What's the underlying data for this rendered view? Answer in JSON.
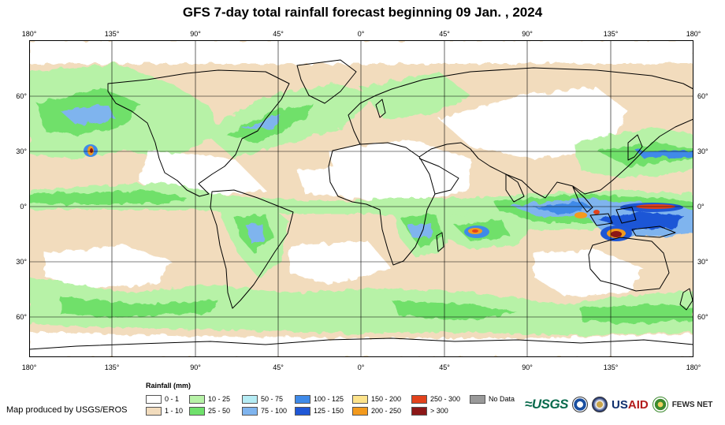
{
  "title": "GFS 7-day total rainfall forecast beginning 09 Jan. , 2024",
  "longitude_labels": [
    "180°",
    "135°",
    "90°",
    "45°",
    "0°",
    "45°",
    "90°",
    "135°",
    "180°"
  ],
  "latitude_labels": [
    "60°",
    "30°",
    "0°",
    "30°",
    "60°"
  ],
  "legend": {
    "title": "Rainfall (mm)",
    "items": [
      {
        "label": "0 - 1",
        "color": "#ffffff"
      },
      {
        "label": "1 - 10",
        "color": "#f2dcbd"
      },
      {
        "label": "10 - 25",
        "color": "#b7f2a7"
      },
      {
        "label": "25 - 50",
        "color": "#6fe06b"
      },
      {
        "label": "50 - 75",
        "color": "#b5ecf4"
      },
      {
        "label": "75 - 100",
        "color": "#7fb4ee"
      },
      {
        "label": "100 - 125",
        "color": "#3f8ae8"
      },
      {
        "label": "125 - 150",
        "color": "#1f57d6"
      },
      {
        "label": "150 - 200",
        "color": "#fde38b"
      },
      {
        "label": "200 - 250",
        "color": "#f39a1d"
      },
      {
        "label": "250 - 300",
        "color": "#e2421c"
      },
      {
        "label": "> 300",
        "color": "#8c1717"
      },
      {
        "label": "No Data",
        "color": "#999999"
      }
    ]
  },
  "credit": "Map produced by USGS/EROS",
  "logos": {
    "usgs": "≈USGS",
    "usaid_a": "US",
    "usaid_b": "AID",
    "fews": "FEWS NET"
  }
}
